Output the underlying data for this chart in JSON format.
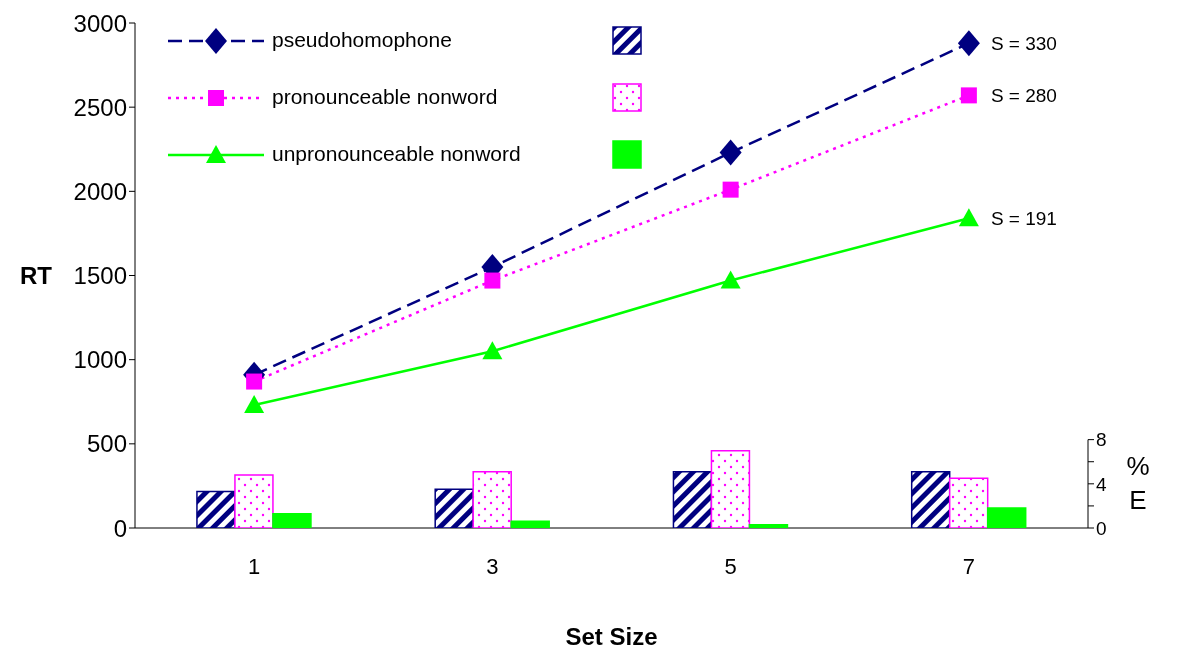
{
  "chart_data": [
    {
      "type": "line",
      "categories": [
        "1",
        "3",
        "5",
        "7"
      ],
      "xlabel": "Set Size",
      "ylabel": "RT",
      "ylim": [
        0,
        3000
      ],
      "yticks": [
        0,
        500,
        1000,
        1500,
        2000,
        2500,
        3000
      ],
      "legend": "top left",
      "grid": false,
      "series": [
        {
          "name": "pseudohomophone",
          "color": "#000080",
          "marker": "diamond",
          "line_style": "dashed",
          "values": [
            910,
            1550,
            2230,
            2880
          ]
        },
        {
          "name": "pronounceable nonword",
          "color": "#ff00ff",
          "marker": "square",
          "line_style": "dotted",
          "values": [
            870,
            1470,
            2010,
            2570
          ]
        },
        {
          "name": "unpronounceable nonword",
          "color": "#00ff00",
          "marker": "triangle",
          "line_style": "solid",
          "values": [
            730,
            1050,
            1470,
            1840
          ]
        }
      ],
      "annotations": [
        {
          "text": "S = 330",
          "x": "7",
          "y": 2880
        },
        {
          "text": "S = 280",
          "x": "7",
          "y": 2570
        },
        {
          "text": "S = 191",
          "x": "7",
          "y": 1840
        }
      ]
    },
    {
      "type": "bar",
      "categories": [
        "1",
        "3",
        "5",
        "7"
      ],
      "ylabel": "% E",
      "ylim": [
        0,
        8
      ],
      "yticks": [
        0,
        {
          "value": 2,
          "label": null
        },
        4,
        {
          "value": 6,
          "label": null
        },
        8
      ],
      "tick_labels": "y",
      "grid": false,
      "series": [
        {
          "color": "#000080",
          "values": [
            3.3,
            3.5,
            5.1,
            5.1
          ]
        },
        {
          "color": "#ff00ff",
          "values": [
            4.8,
            5.1,
            7.0,
            4.5
          ]
        },
        {
          "color": "#00ff00",
          "values": [
            1.3,
            0.6,
            0.3,
            1.8
          ]
        }
      ]
    }
  ]
}
